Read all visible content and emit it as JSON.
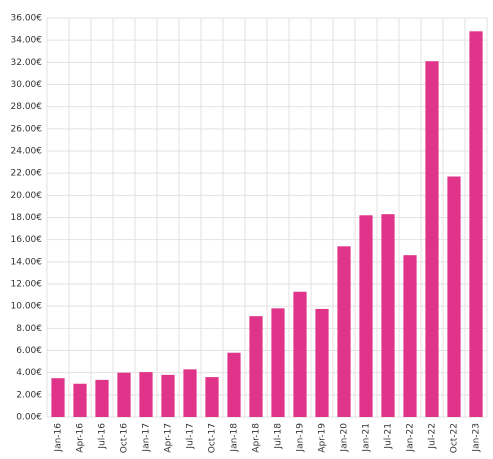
{
  "chart_data": {
    "type": "bar",
    "categories": [
      "Jan-16",
      "Apr-16",
      "Jul-16",
      "Oct-16",
      "Jan-17",
      "Apr-17",
      "Jul-17",
      "Oct-17",
      "Jan-18",
      "Apr-18",
      "Jul-18",
      "Jan-19",
      "Apr-19",
      "Jan-20",
      "Jan-21",
      "Jul-21",
      "Jan-22",
      "Jul-22",
      "Oct-22",
      "Jan-23"
    ],
    "values": [
      3.5,
      3.0,
      3.35,
      4.0,
      4.05,
      3.8,
      4.3,
      3.6,
      5.8,
      9.1,
      9.8,
      11.3,
      9.75,
      15.4,
      18.2,
      18.3,
      14.6,
      32.1,
      21.7,
      34.8
    ],
    "color": "#e0338a",
    "ylim": [
      0,
      36
    ],
    "yticks": [
      {
        "value": 0,
        "label": "0.00€"
      },
      {
        "value": 2,
        "label": "2.00€"
      },
      {
        "value": 4,
        "label": "4.00€"
      },
      {
        "value": 6,
        "label": "6.00€"
      },
      {
        "value": 8,
        "label": "8.00€"
      },
      {
        "value": 10,
        "label": "10.00€"
      },
      {
        "value": 12,
        "label": "12.00€"
      },
      {
        "value": 14,
        "label": "14.00€"
      },
      {
        "value": 16,
        "label": "16.00€"
      },
      {
        "value": 18,
        "label": "18.00€"
      },
      {
        "value": 20,
        "label": "20.00€"
      },
      {
        "value": 22,
        "label": "22.00€"
      },
      {
        "value": 24,
        "label": "24.00€"
      },
      {
        "value": 26,
        "label": "26.00€"
      },
      {
        "value": 28,
        "label": "28.00€"
      },
      {
        "value": 30,
        "label": "30.00€"
      },
      {
        "value": 32,
        "label": "32.00€"
      },
      {
        "value": 34,
        "label": "34.00€"
      },
      {
        "value": 36,
        "label": "36.00€"
      }
    ],
    "grid": true
  }
}
